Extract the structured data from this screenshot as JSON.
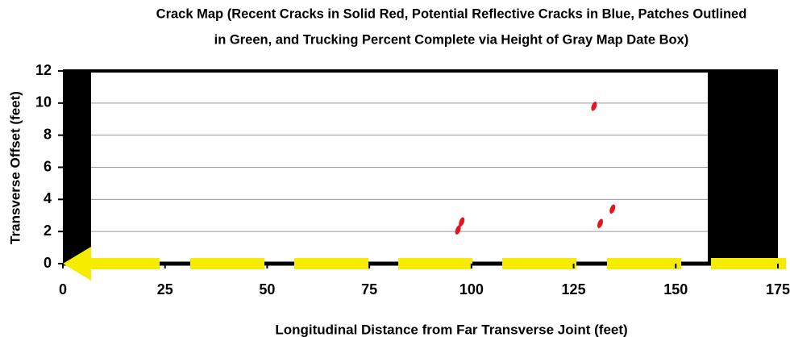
{
  "chart_data": {
    "type": "scatter",
    "title": [
      "Crack Map (Recent Cracks in Solid Red, Potential Reflective Cracks in Blue, Patches Outlined",
      "in Green,  and Trucking Percent Complete via Height of Gray Map Date Box)"
    ],
    "x_label": "Longitudinal Distance from Far Transverse Joint (feet)",
    "y_label": "Transverse Offset (feet)",
    "x": [
      96.7,
      97.6,
      130,
      131.5,
      134.5
    ],
    "values": [
      2.1,
      2.6,
      9.8,
      2.5,
      3.4
    ],
    "color": "#e8141c",
    "xlim": [
      0,
      175
    ],
    "xticks": [
      0,
      25,
      50,
      75,
      100,
      125,
      150,
      175
    ],
    "ylim": [
      0,
      12
    ],
    "yticks": [
      0,
      2,
      4,
      6,
      8,
      10,
      12
    ],
    "grid": true
  }
}
